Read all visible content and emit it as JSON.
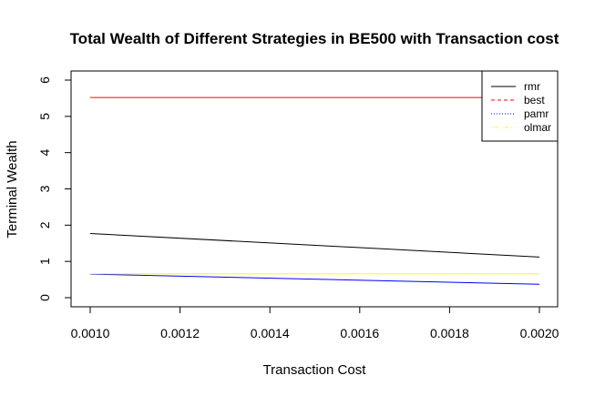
{
  "chart_data": {
    "type": "line",
    "title": "Total Wealth of Different Strategies in BE500 with Transaction cost",
    "xlabel": "Transaction Cost",
    "ylabel": "Terminal Wealth",
    "x": [
      0.001,
      0.002
    ],
    "xlim": [
      0.001,
      0.002
    ],
    "ylim": [
      0,
      6
    ],
    "xticks": [
      "0.0010",
      "0.0012",
      "0.0014",
      "0.0016",
      "0.0018",
      "0.0020"
    ],
    "yticks": [
      "0",
      "1",
      "2",
      "3",
      "4",
      "5",
      "6"
    ],
    "legend_position": "top-right",
    "grid": false,
    "series": [
      {
        "name": "rmr",
        "color": "#000000",
        "dash": "solid",
        "values": [
          1.77,
          1.12
        ]
      },
      {
        "name": "best",
        "color": "#ff0000",
        "dash": "dashed",
        "values": [
          5.52,
          5.52
        ]
      },
      {
        "name": "pamr",
        "color": "#0000ff",
        "dash": "dotted",
        "values": [
          0.65,
          0.37
        ]
      },
      {
        "name": "olmar",
        "color": "#ffff00",
        "dash": "dotdash",
        "values": [
          0.66,
          0.66
        ]
      }
    ]
  }
}
